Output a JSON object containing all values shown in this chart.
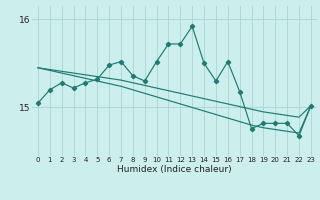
{
  "x": [
    0,
    1,
    2,
    3,
    4,
    5,
    6,
    7,
    8,
    9,
    10,
    11,
    12,
    13,
    14,
    15,
    16,
    17,
    18,
    19,
    20,
    21,
    22,
    23
  ],
  "y_main": [
    15.05,
    15.2,
    15.28,
    15.22,
    15.28,
    15.32,
    15.48,
    15.52,
    15.36,
    15.3,
    15.52,
    15.72,
    15.72,
    15.92,
    15.5,
    15.3,
    15.52,
    15.18,
    14.76,
    14.82,
    14.82,
    14.82,
    14.68,
    15.02
  ],
  "y_trend1": [
    15.45,
    15.43,
    15.41,
    15.39,
    15.37,
    15.35,
    15.33,
    15.31,
    15.28,
    15.25,
    15.22,
    15.19,
    15.16,
    15.13,
    15.1,
    15.07,
    15.04,
    15.01,
    14.98,
    14.95,
    14.93,
    14.91,
    14.89,
    15.02
  ],
  "y_trend2": [
    15.45,
    15.42,
    15.39,
    15.36,
    15.33,
    15.3,
    15.27,
    15.24,
    15.2,
    15.16,
    15.12,
    15.08,
    15.04,
    15.0,
    14.96,
    14.92,
    14.88,
    14.84,
    14.8,
    14.77,
    14.75,
    14.73,
    14.71,
    15.02
  ],
  "bg_color": "#cceeed",
  "grid_color": "#aad6d2",
  "line_color": "#1e7a72",
  "yticks": [
    15,
    16
  ],
  "ylabel_vals": [
    "15",
    "16"
  ],
  "xlabel": "Humidex (Indice chaleur)",
  "ylim": [
    14.45,
    16.15
  ],
  "xlim": [
    -0.5,
    23.5
  ]
}
